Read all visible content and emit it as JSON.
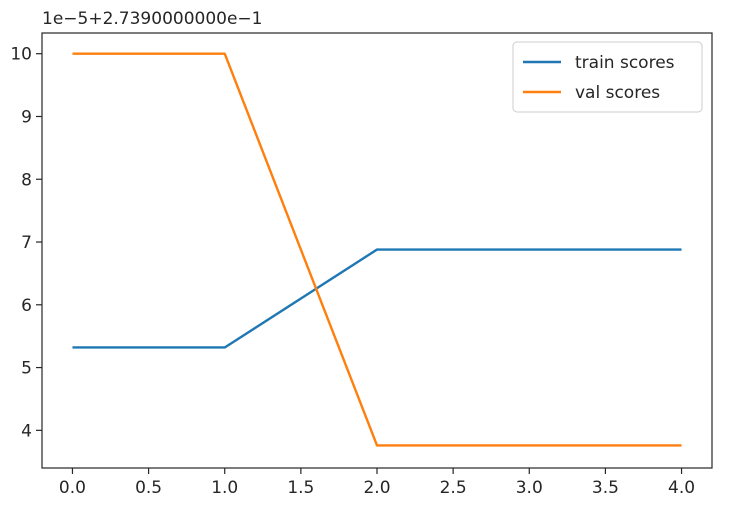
{
  "chart_data": {
    "type": "line",
    "title": "",
    "xlabel": "",
    "ylabel": "",
    "offset_text": "1e−5+2.7390000000e−1",
    "xlim": [
      -0.2,
      4.2
    ],
    "ylim": [
      3.4,
      10.33
    ],
    "x_ticks": [
      0.0,
      0.5,
      1.0,
      1.5,
      2.0,
      2.5,
      3.0,
      3.5,
      4.0
    ],
    "x_tick_labels": [
      "0.0",
      "0.5",
      "1.0",
      "1.5",
      "2.0",
      "2.5",
      "3.0",
      "3.5",
      "4.0"
    ],
    "y_ticks": [
      4,
      5,
      6,
      7,
      8,
      9,
      10
    ],
    "y_tick_labels": [
      "4",
      "5",
      "6",
      "7",
      "8",
      "9",
      "10"
    ],
    "x": [
      0,
      1,
      2,
      3,
      4
    ],
    "series": [
      {
        "name": "train scores",
        "color": "#1f77b4",
        "values": [
          5.32,
          5.32,
          6.88,
          6.88,
          6.88
        ]
      },
      {
        "name": "val scores",
        "color": "#ff7f0e",
        "values": [
          10.0,
          10.0,
          3.76,
          3.76,
          3.76
        ]
      }
    ],
    "grid": false,
    "legend_position": "upper-right"
  }
}
